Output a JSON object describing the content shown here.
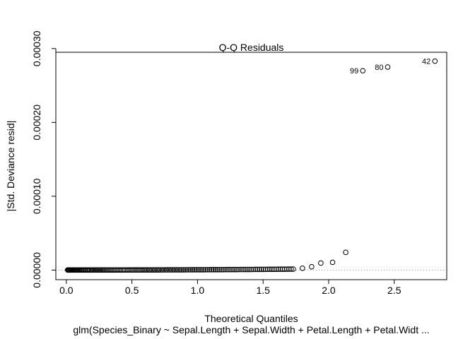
{
  "chart_data": {
    "type": "scatter",
    "title": "Q-Q Residuals",
    "xlabel": "Theoretical Quantiles",
    "ylabel": "|Std. Deviance resid|",
    "subtitle": "glm(Species_Binary ~ Sepal.Length + Sepal.Width + Petal.Length + Petal.Widt ...",
    "xlim": [
      -0.08,
      2.9
    ],
    "ylim": [
      -1.3e-05,
      0.000295
    ],
    "x_ticks": [
      {
        "value": 0.0,
        "label": "0.0"
      },
      {
        "value": 0.5,
        "label": "0.5"
      },
      {
        "value": 1.0,
        "label": "1.0"
      },
      {
        "value": 1.5,
        "label": "1.5"
      },
      {
        "value": 2.0,
        "label": "2.0"
      },
      {
        "value": 2.5,
        "label": "2.5"
      }
    ],
    "y_ticks": [
      {
        "value": 0.0,
        "label": "0.00000"
      },
      {
        "value": 0.0001,
        "label": "0.00010"
      },
      {
        "value": 0.0002,
        "label": "0.00020"
      },
      {
        "value": 0.0003,
        "label": "0.00030"
      }
    ],
    "reference_line": {
      "y": 0,
      "style": "dotted",
      "color": "#808080"
    },
    "grid": false,
    "point_count": 150,
    "upper_points": [
      {
        "x": 1.8,
        "y": 2.5e-06
      },
      {
        "x": 1.87,
        "y": 4.5e-06
      },
      {
        "x": 1.94,
        "y": 9.5e-06
      },
      {
        "x": 2.03,
        "y": 1.05e-05
      },
      {
        "x": 2.13,
        "y": 2.4e-05
      },
      {
        "x": 2.26,
        "y": 0.00027
      },
      {
        "x": 2.45,
        "y": 0.000275
      },
      {
        "x": 2.81,
        "y": 0.000283
      }
    ],
    "point_labels": [
      {
        "text": "99",
        "x": 2.26,
        "y": 0.00027
      },
      {
        "text": "80",
        "x": 2.45,
        "y": 0.000275
      },
      {
        "text": "42",
        "x": 2.81,
        "y": 0.000283
      }
    ]
  }
}
